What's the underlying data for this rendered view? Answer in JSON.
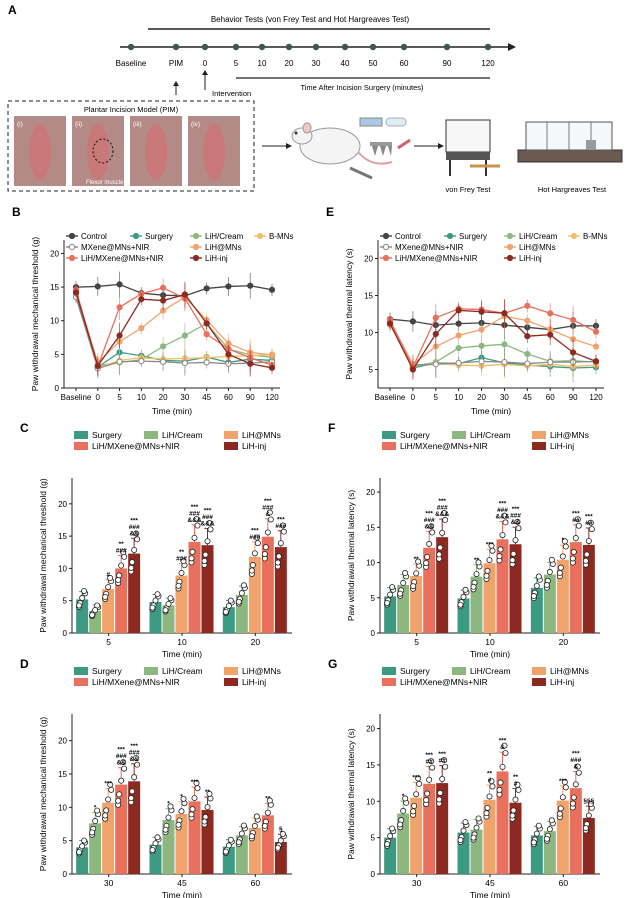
{
  "colors": {
    "surgery": "#3d9a82",
    "cream": "#8cb880",
    "mns": "#f0a46c",
    "mxene": "#e8705c",
    "inj": "#8c2a22",
    "control": "#444444",
    "bmns": "#f2be6a",
    "mxene_open": "#888888",
    "axis": "#222222"
  },
  "panelA": {
    "letter": "A",
    "behavior_label": "Behavior Tests (von Frey Test and Hot Hargreaves Test)",
    "timeline_ticks": [
      "Baseline",
      "PIM",
      "0",
      "5",
      "10",
      "20",
      "30",
      "40",
      "50",
      "60",
      "90",
      "120"
    ],
    "intervention_label": "Intervention",
    "after_label": "Time After Incision Surgery (minutes)",
    "pim_box_title": "Plantar Incision Model (PIM)",
    "photo_labels": [
      "(i)",
      "(ii)",
      "(iii)",
      "(iv)"
    ],
    "flexor_label": "Flexor muscle",
    "vonfrey_label": "von Frey Test",
    "hargreaves_label": "Hot Hargreaves Test"
  },
  "legendLine": [
    "Control",
    "Surgery",
    "LiH/Cream",
    "B-MNs",
    "MXene@MNs+NIR",
    "LiH@MNs",
    "LiH/MXene@MNs+NIR",
    "LiH-inj"
  ],
  "legendBar": [
    "Surgery",
    "LiH/Cream",
    "LiH@MNs",
    "LiH/MXene@MNs+NIR",
    "LiH-inj"
  ],
  "chart_data": [
    {
      "panel": "B",
      "type": "line",
      "title": "",
      "xlabel": "Time (min)",
      "ylabel": "Paw withdrawal mechanical threshold (g)",
      "categories": [
        "Baseline",
        "0",
        "5",
        "10",
        "20",
        "30",
        "45",
        "60",
        "90",
        "120"
      ],
      "ylim": [
        0,
        22
      ],
      "yticks": [
        "0",
        "5",
        "10",
        "15",
        "20"
      ],
      "series": [
        {
          "name": "Control",
          "values": [
            15.0,
            15.1,
            15.4,
            14.1,
            13.8,
            13.7,
            14.8,
            15.1,
            15.2,
            14.6
          ]
        },
        {
          "name": "Surgery",
          "values": [
            14.1,
            3.1,
            5.3,
            4.8,
            4.1,
            4.0,
            4.6,
            3.8,
            4.3,
            4.1
          ]
        },
        {
          "name": "LiH/Cream",
          "values": [
            13.8,
            3.3,
            3.8,
            4.2,
            6.2,
            7.8,
            9.6,
            5.8,
            4.9,
            4.6
          ]
        },
        {
          "name": "B-MNs",
          "values": [
            13.6,
            3.0,
            4.1,
            4.5,
            4.3,
            4.4,
            4.5,
            4.7,
            4.8,
            5.0
          ]
        },
        {
          "name": "MXene@MNs+NIR",
          "values": [
            13.5,
            2.9,
            3.9,
            4.0,
            3.9,
            3.7,
            3.8,
            3.6,
            3.7,
            3.9
          ]
        },
        {
          "name": "LiH@MNs",
          "values": [
            14.3,
            3.8,
            6.9,
            8.9,
            11.5,
            13.5,
            10.1,
            6.6,
            5.3,
            4.9
          ]
        },
        {
          "name": "LiH/MXene@MNs+NIR",
          "values": [
            14.6,
            3.2,
            12.0,
            14.0,
            14.9,
            13.3,
            8.0,
            5.8,
            4.5,
            3.4
          ]
        },
        {
          "name": "LiH-inj",
          "values": [
            14.2,
            3.3,
            7.8,
            13.2,
            13.0,
            13.9,
            9.6,
            5.0,
            3.6,
            3.0
          ]
        }
      ]
    },
    {
      "panel": "E",
      "type": "line",
      "title": "",
      "xlabel": "Time (min)",
      "ylabel": "Paw withdrawal thermal latency (s)",
      "categories": [
        "Baseline",
        "0",
        "5",
        "10",
        "20",
        "30",
        "45",
        "60",
        "90",
        "120"
      ],
      "ylim": [
        2.5,
        22.5
      ],
      "yticks": [
        "5",
        "10",
        "15",
        "20"
      ],
      "series": [
        {
          "name": "Control",
          "values": [
            11.8,
            11.5,
            11.0,
            11.2,
            11.3,
            11.0,
            10.7,
            10.4,
            10.9,
            10.9
          ]
        },
        {
          "name": "Surgery",
          "values": [
            11.3,
            5.2,
            5.9,
            5.8,
            6.6,
            5.9,
            5.6,
            5.4,
            5.2,
            5.3
          ]
        },
        {
          "name": "LiH/Cream",
          "values": [
            11.2,
            5.4,
            6.0,
            7.9,
            8.2,
            8.4,
            7.1,
            6.1,
            6.2,
            6.0
          ]
        },
        {
          "name": "B-MNs",
          "values": [
            11.0,
            5.5,
            5.8,
            5.6,
            5.5,
            5.7,
            5.5,
            5.7,
            5.4,
            5.6
          ]
        },
        {
          "name": "MXene@MNs+NIR",
          "values": [
            11.4,
            5.6,
            5.7,
            5.9,
            6.1,
            6.0,
            5.8,
            6.0,
            6.0,
            6.1
          ]
        },
        {
          "name": "LiH@MNs",
          "values": [
            11.5,
            5.7,
            8.1,
            9.6,
            10.4,
            12.2,
            11.6,
            10.4,
            9.1,
            8.1
          ]
        },
        {
          "name": "LiH/MXene@MNs+NIR",
          "values": [
            11.7,
            5.3,
            12.0,
            13.2,
            13.1,
            12.6,
            13.6,
            12.6,
            11.7,
            10.1
          ]
        },
        {
          "name": "LiH-inj",
          "values": [
            11.2,
            5.0,
            9.8,
            13.0,
            12.8,
            12.6,
            9.5,
            9.7,
            7.3,
            6.1
          ]
        }
      ]
    },
    {
      "panel": "C",
      "type": "bar",
      "xlabel": "Time (min)",
      "ylabel": "Paw withdrawal mechanical threshold (g)",
      "categories": [
        "5",
        "10",
        "20"
      ],
      "ylim": [
        0,
        24
      ],
      "yticks": [
        "0",
        "5",
        "10",
        "15",
        "20"
      ],
      "series": [
        {
          "name": "Surgery",
          "values": [
            5.2,
            4.8,
            4.0
          ]
        },
        {
          "name": "LiH/Cream",
          "values": [
            3.4,
            4.3,
            5.9
          ]
        },
        {
          "name": "LiH@MNs",
          "values": [
            6.8,
            8.9,
            11.8
          ]
        },
        {
          "name": "LiH/MXene@MNs+NIR",
          "values": [
            10.0,
            14.1,
            14.9
          ]
        },
        {
          "name": "LiH-inj",
          "values": [
            12.3,
            13.6,
            13.3
          ]
        }
      ],
      "annotations": [
        [
          "",
          "",
          "#",
          "**\n###",
          "***\n###\n&&"
        ],
        [
          "",
          "",
          "**\n###",
          "***\n###\n&&&",
          "***\n###\n&&&"
        ],
        [
          "",
          "",
          "***\n###",
          "***\n###\n&",
          "***\n###"
        ]
      ]
    },
    {
      "panel": "F",
      "type": "bar",
      "xlabel": "Time (min)",
      "ylabel": "Paw withdrawal thermal latency (s)",
      "categories": [
        "5",
        "10",
        "20"
      ],
      "ylim": [
        0,
        22
      ],
      "yticks": [
        "0",
        "5",
        "10",
        "15",
        "20"
      ],
      "series": [
        {
          "name": "Surgery",
          "values": [
            5.2,
            4.9,
            6.4
          ]
        },
        {
          "name": "LiH/Cream",
          "values": [
            6.8,
            8.0,
            8.3
          ]
        },
        {
          "name": "LiH@MNs",
          "values": [
            8.1,
            9.9,
            10.4
          ]
        },
        {
          "name": "LiH/MXene@MNs+NIR",
          "values": [
            12.1,
            13.3,
            12.9
          ]
        },
        {
          "name": "LiH-inj",
          "values": [
            13.6,
            12.6,
            12.5
          ]
        }
      ],
      "annotations": [
        [
          "",
          "",
          "**",
          "***\n###\n&&",
          "***\n###\n&&&"
        ],
        [
          "",
          "**",
          "***",
          "***\n###\n&&&",
          "***\n###\n&&"
        ],
        [
          "",
          "",
          "*",
          "***\n##",
          "***\n##"
        ]
      ]
    },
    {
      "panel": "D",
      "type": "bar",
      "xlabel": "Time (min)",
      "ylabel": "Paw withdrawal mechanical threshold (g)",
      "categories": [
        "30",
        "45",
        "60"
      ],
      "ylim": [
        0,
        24
      ],
      "yticks": [
        "0",
        "5",
        "10",
        "15",
        "20"
      ],
      "series": [
        {
          "name": "Surgery",
          "values": [
            4.0,
            4.4,
            4.1
          ]
        },
        {
          "name": "LiH/Cream",
          "values": [
            7.6,
            8.1,
            5.8
          ]
        },
        {
          "name": "LiH@MNs",
          "values": [
            10.7,
            9.0,
            6.9
          ]
        },
        {
          "name": "LiH/MXene@MNs+NIR",
          "values": [
            13.4,
            10.9,
            8.8
          ]
        },
        {
          "name": "LiH-inj",
          "values": [
            13.9,
            9.6,
            4.8
          ]
        }
      ],
      "annotations": [
        [
          "",
          "*",
          "***",
          "***\n###\n&&",
          "***\n###\n&&"
        ],
        [
          "",
          "*",
          "*",
          "***",
          "**"
        ],
        [
          "",
          "",
          "",
          "**",
          "§"
        ]
      ]
    },
    {
      "panel": "G",
      "type": "bar",
      "xlabel": "Time (min)",
      "ylabel": "Paw withdrawal thermal latency (s)",
      "categories": [
        "30",
        "45",
        "60"
      ],
      "ylim": [
        0,
        22
      ],
      "yticks": [
        "0",
        "5",
        "10",
        "15",
        "20"
      ],
      "series": [
        {
          "name": "Surgery",
          "values": [
            5.0,
            5.7,
            5.3
          ]
        },
        {
          "name": "LiH/Cream",
          "values": [
            8.3,
            6.1,
            5.9
          ]
        },
        {
          "name": "LiH@MNs",
          "values": [
            10.5,
            10.2,
            10.1
          ]
        },
        {
          "name": "LiH/MXene@MNs+NIR",
          "values": [
            12.4,
            14.1,
            11.8
          ]
        },
        {
          "name": "LiH-inj",
          "values": [
            12.5,
            9.8,
            7.7
          ]
        }
      ],
      "annotations": [
        [
          "",
          "*",
          "***",
          "***\n##",
          "***\n##"
        ],
        [
          "",
          "",
          "**\n#",
          "***\n&",
          "**\n#"
        ],
        [
          "",
          "",
          "***",
          "***\n###\n&",
          "§§§"
        ]
      ]
    }
  ]
}
